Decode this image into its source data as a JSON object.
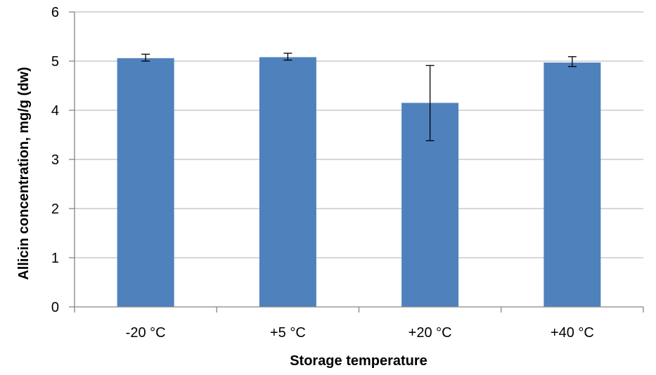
{
  "chart_data": {
    "type": "bar",
    "title": "",
    "xlabel": "Storage temperature",
    "ylabel": "Allicin concentration, mg/g (dw)",
    "categories": [
      "-20 °C",
      "+5 °C",
      "+20 °C",
      "+40 °C"
    ],
    "series": [
      {
        "values": [
          5.06,
          5.08,
          4.15,
          4.97
        ],
        "error_low": [
          5.0,
          5.02,
          3.38,
          4.89
        ],
        "error_high": [
          5.14,
          5.16,
          4.91,
          5.09
        ]
      }
    ],
    "ylim": [
      0,
      6
    ],
    "yticks": [
      "0",
      "1",
      "2",
      "3",
      "4",
      "5",
      "6"
    ],
    "grid": "horizontal",
    "legend": "none",
    "colors": {
      "bar": "#4f81bd",
      "grid": "#bfbfbf",
      "axis": "#868686",
      "error_bar": "#000000"
    }
  }
}
